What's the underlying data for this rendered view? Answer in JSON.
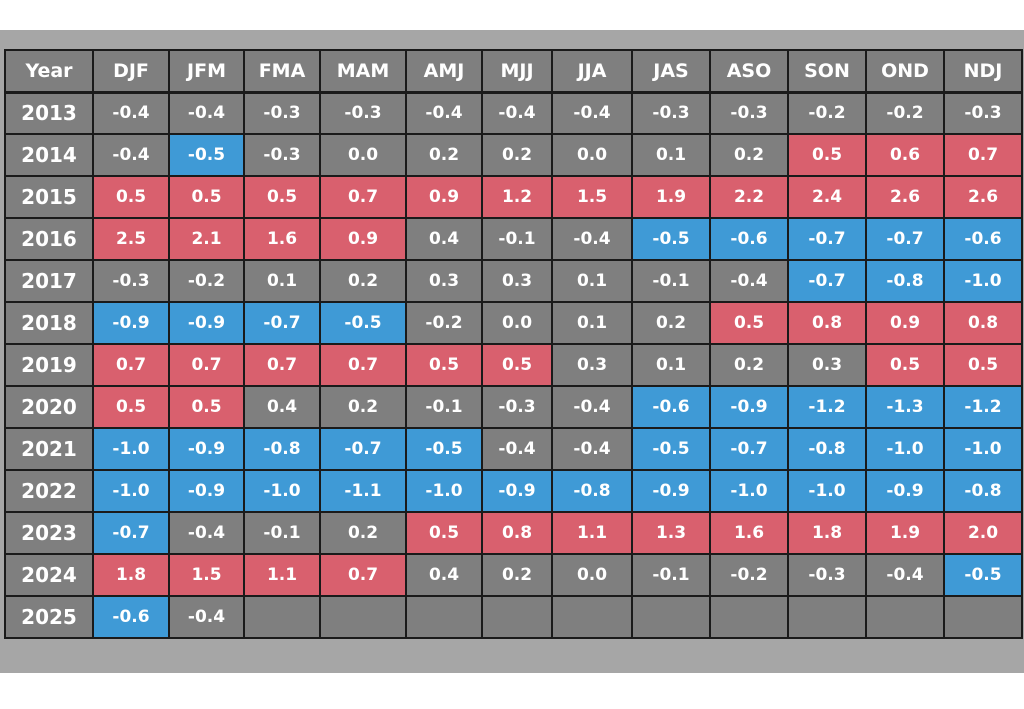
{
  "chart_data": {
    "type": "table",
    "columns": [
      "Year",
      "DJF",
      "JFM",
      "FMA",
      "MAM",
      "AMJ",
      "MJJ",
      "JJA",
      "JAS",
      "ASO",
      "SON",
      "OND",
      "NDJ"
    ],
    "rows": [
      {
        "year": "2013",
        "values": [
          "-0.4",
          "-0.4",
          "-0.3",
          "-0.3",
          "-0.4",
          "-0.4",
          "-0.4",
          "-0.3",
          "-0.3",
          "-0.2",
          "-0.2",
          "-0.3"
        ]
      },
      {
        "year": "2014",
        "values": [
          "-0.4",
          "-0.5",
          "-0.3",
          "0.0",
          "0.2",
          "0.2",
          "0.0",
          "0.1",
          "0.2",
          "0.5",
          "0.6",
          "0.7"
        ]
      },
      {
        "year": "2015",
        "values": [
          "0.5",
          "0.5",
          "0.5",
          "0.7",
          "0.9",
          "1.2",
          "1.5",
          "1.9",
          "2.2",
          "2.4",
          "2.6",
          "2.6"
        ]
      },
      {
        "year": "2016",
        "values": [
          "2.5",
          "2.1",
          "1.6",
          "0.9",
          "0.4",
          "-0.1",
          "-0.4",
          "-0.5",
          "-0.6",
          "-0.7",
          "-0.7",
          "-0.6"
        ]
      },
      {
        "year": "2017",
        "values": [
          "-0.3",
          "-0.2",
          "0.1",
          "0.2",
          "0.3",
          "0.3",
          "0.1",
          "-0.1",
          "-0.4",
          "-0.7",
          "-0.8",
          "-1.0"
        ]
      },
      {
        "year": "2018",
        "values": [
          "-0.9",
          "-0.9",
          "-0.7",
          "-0.5",
          "-0.2",
          "0.0",
          "0.1",
          "0.2",
          "0.5",
          "0.8",
          "0.9",
          "0.8"
        ]
      },
      {
        "year": "2019",
        "values": [
          "0.7",
          "0.7",
          "0.7",
          "0.7",
          "0.5",
          "0.5",
          "0.3",
          "0.1",
          "0.2",
          "0.3",
          "0.5",
          "0.5"
        ]
      },
      {
        "year": "2020",
        "values": [
          "0.5",
          "0.5",
          "0.4",
          "0.2",
          "-0.1",
          "-0.3",
          "-0.4",
          "-0.6",
          "-0.9",
          "-1.2",
          "-1.3",
          "-1.2"
        ]
      },
      {
        "year": "2021",
        "values": [
          "-1.0",
          "-0.9",
          "-0.8",
          "-0.7",
          "-0.5",
          "-0.4",
          "-0.4",
          "-0.5",
          "-0.7",
          "-0.8",
          "-1.0",
          "-1.0"
        ]
      },
      {
        "year": "2022",
        "values": [
          "-1.0",
          "-0.9",
          "-1.0",
          "-1.1",
          "-1.0",
          "-0.9",
          "-0.8",
          "-0.9",
          "-1.0",
          "-1.0",
          "-0.9",
          "-0.8"
        ]
      },
      {
        "year": "2023",
        "values": [
          "-0.7",
          "-0.4",
          "-0.1",
          "0.2",
          "0.5",
          "0.8",
          "1.1",
          "1.3",
          "1.6",
          "1.8",
          "1.9",
          "2.0"
        ]
      },
      {
        "year": "2024",
        "values": [
          "1.8",
          "1.5",
          "1.1",
          "0.7",
          "0.4",
          "0.2",
          "0.0",
          "-0.1",
          "-0.2",
          "-0.3",
          "-0.4",
          "-0.5"
        ]
      },
      {
        "year": "2025",
        "values": [
          "-0.6",
          "-0.4",
          "",
          "",
          "",
          "",
          "",
          "",
          "",
          "",
          "",
          ""
        ]
      }
    ],
    "color_thresholds": {
      "warm_at_or_above": 0.5,
      "cool_at_or_below": -0.5
    },
    "colors": {
      "warm": "#d9606e",
      "cool": "#3f9ad6",
      "neutral": "#7f7f7f",
      "frame": "#a6a6a6",
      "border": "#1a1a1a"
    }
  }
}
